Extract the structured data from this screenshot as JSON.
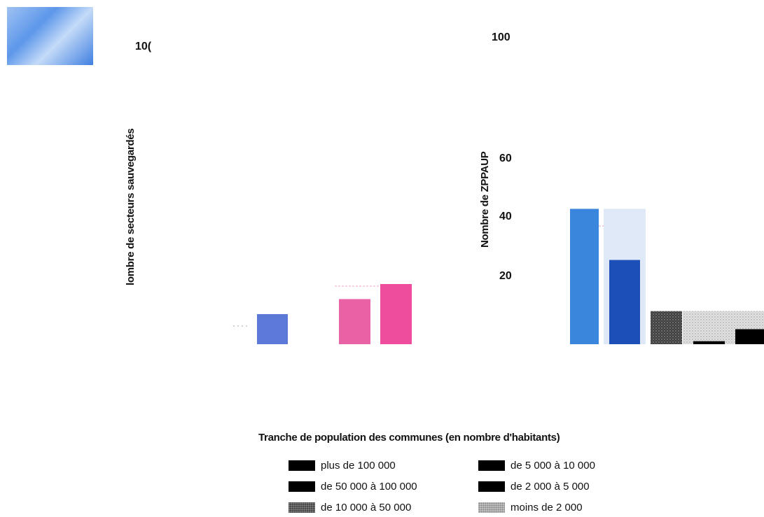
{
  "chart_data": [
    {
      "type": "bar",
      "ylabel": "lombre de secteurs sauvegardés",
      "y_tick_labels": [
        "10("
      ],
      "bars": [
        {
          "category": "plus de 100 000",
          "value": 10,
          "color": "#5b79d6"
        },
        {
          "category": "de 10 000 à 50 000",
          "value": 15,
          "color": "#ea62a6"
        },
        {
          "category": "de 5 000 à 10 000",
          "value": 20,
          "color": "#ee4c9c"
        }
      ]
    },
    {
      "type": "bar",
      "ylabel": "Nombre de ZPPAUP",
      "y_tick_labels": [
        "100",
        "60",
        "40",
        "20"
      ],
      "bars": [
        {
          "category": "plus de 100 000",
          "value": 45,
          "color": "#3a86dc"
        },
        {
          "category": "de 50 000 à 100 000",
          "value": 28,
          "color": "#1d4fb8"
        },
        {
          "category": "de 10 000 à 50 000",
          "value": 11,
          "color": "#555555",
          "pattern": "grey"
        },
        {
          "category": "de 5 000 à 10 000",
          "value": 1,
          "color": "#000000"
        },
        {
          "category": "de 2 000 à 5 000",
          "value": 5,
          "color": "#000000"
        }
      ],
      "backdrop_bands": [
        {
          "category": "de 50 000 à 100 000",
          "value": 45,
          "color": "#dfe8f6"
        },
        {
          "category": "moins de 2 000",
          "value": 11,
          "color": "#d8d8d8",
          "pattern": "light"
        }
      ]
    }
  ],
  "legend": {
    "title": "Tranche de population des communes (en nombre d'habitants)",
    "items": [
      {
        "label": "plus de 100 000",
        "swatch": "solid"
      },
      {
        "label": "de 5 000 à 10 000",
        "swatch": "solid"
      },
      {
        "label": "de 50 000 à 100 000",
        "swatch": "solid"
      },
      {
        "label": "de 2 000 à 5 000",
        "swatch": "solid"
      },
      {
        "label": "de 10 000 à 50 000",
        "swatch": "grey"
      },
      {
        "label": "moins de 2 000",
        "swatch": "light"
      }
    ]
  }
}
